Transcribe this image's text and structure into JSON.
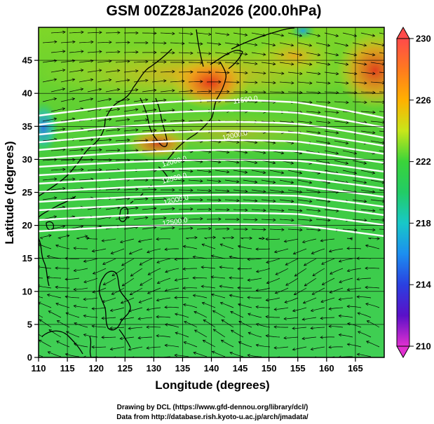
{
  "title": "GSM 00Z28Jan2026 (200.0hPa)",
  "x_axis": {
    "label": "Longitude (degrees)",
    "min": 110,
    "max": 170,
    "ticks": [
      "110",
      "115",
      "120",
      "125",
      "130",
      "135",
      "140",
      "145",
      "150",
      "155",
      "160",
      "165"
    ]
  },
  "y_axis": {
    "label": "Latitude  (degrees)",
    "min": 0,
    "max": 50,
    "ticks": [
      "0",
      "5",
      "10",
      "15",
      "20",
      "25",
      "30",
      "35",
      "40",
      "45"
    ]
  },
  "colorbar": {
    "min": 210,
    "max": 230,
    "ticks": [
      "230",
      "226",
      "222",
      "218",
      "214",
      "210"
    ]
  },
  "contour_labels": [
    "11500.0",
    "12000.0",
    "12000.0",
    "12500.0",
    "12000.0",
    "12500.0"
  ],
  "footer": {
    "line1": "Drawing by DCL (https://www.gfd-dennou.org/library/dcl/)",
    "line2": "Data from http://database.rish.kyoto-u.ac.jp/arch/jmadata/"
  },
  "colors": {
    "background": "#ffffff",
    "coast": "#000000",
    "contour": "#ffffff",
    "streamline": "#000000"
  }
}
